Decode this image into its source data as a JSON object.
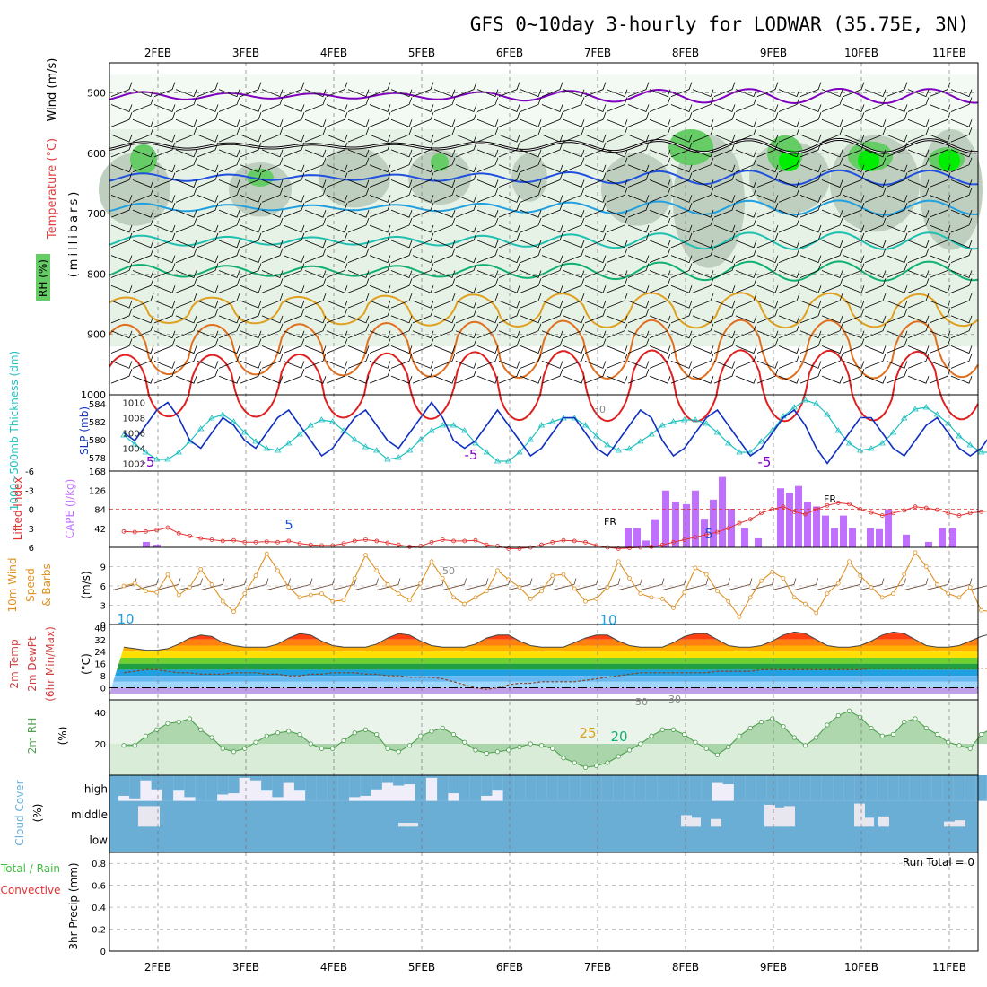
{
  "title": "GFS 0~10day 3-hourly for LODWAR (35.75E, 3N)",
  "dates": [
    "2FEB",
    "3FEB",
    "4FEB",
    "5FEB",
    "6FEB",
    "7FEB",
    "8FEB",
    "9FEB",
    "10FEB",
    "11FEB"
  ],
  "colors": {
    "rh_light": "#e6f2e6",
    "rh_mid": "#bfcfbf",
    "rh_high": "#66cc66",
    "rh_max": "#00ee00",
    "purple": "#8000c0",
    "blue": "#2050e0",
    "sky": "#20a0e0",
    "teal": "#20c0b0",
    "green": "#10b070",
    "orange": "#e0a020",
    "dorange": "#e07020",
    "red": "#e02020",
    "thickness": "#20c0c0",
    "slp": "#1030c0",
    "cape": "#c070ff",
    "li": "#e03030",
    "wind": "#e09020",
    "rh2m": "#50a050",
    "cloud": "#6aaed6",
    "cloud_bg": "#f0eef8"
  },
  "panels": {
    "upper": {
      "ylabel_wind": "Wind (m/s)",
      "ylabel_temp": "Temperature (°C)",
      "ylabel_rh": "RH (%)",
      "ylabel_units": "(millibars)",
      "ticks": [
        "500",
        "600",
        "700",
        "800",
        "900",
        "1000"
      ],
      "contour_labels": [
        "-5",
        "-5",
        "-5",
        "5",
        "5",
        "10",
        "10",
        "25",
        "20",
        "FR",
        "FR",
        "30",
        "50",
        "50",
        "30"
      ]
    },
    "thick": {
      "ylabel_thick": "1000~500mb Thickness (dm)",
      "ylabel_slp": "SLP (mb)",
      "left_ticks": [
        "584",
        "582",
        "580",
        "578"
      ],
      "right_ticks": [
        "1010",
        "1008",
        "1006",
        "1004",
        "1002"
      ]
    },
    "cape": {
      "ylabel_li": "Lifted Index",
      "ylabel_cape": "CAPE (J/kg)",
      "li_ticks": [
        "-6",
        "-3",
        "0",
        "3",
        "6"
      ],
      "cape_ticks": [
        "168",
        "126",
        "84",
        "42"
      ]
    },
    "wind": {
      "ylabel1": "10m Wind",
      "ylabel2": "Speed",
      "ylabel3": "& Barbs",
      "ylabel_units": "(m/s)",
      "ticks": [
        "9",
        "6",
        "3",
        "0"
      ]
    },
    "temp": {
      "ylabel1": "2m Temp",
      "ylabel2": "2m DewPt",
      "ylabel3": "(6hr Min/Max)",
      "ylabel_units": "(°C)",
      "ticks": [
        "40",
        "32",
        "24",
        "16",
        "8",
        "0"
      ]
    },
    "rh": {
      "ylabel": "2m RH",
      "ylabel_units": "(%)",
      "ticks": [
        "40",
        "20"
      ]
    },
    "cloud": {
      "ylabel": "Cloud Cover",
      "ylabel_units": "(%)",
      "levels": [
        "high",
        "middle",
        "low"
      ]
    },
    "precip": {
      "ylabel1": "Total / Rain",
      "ylabel2": "Convective",
      "ylabel3": "3hr Precip (mm)",
      "ticks": [
        "0.8",
        "0.6",
        "0.4",
        "0.2",
        "0"
      ],
      "run_total": "Run Total = 0"
    }
  },
  "chart_data": {
    "type": "line",
    "title": "GFS 0~10day 3-hourly for LODWAR (35.75E, 3N)",
    "x_axis": "3-hourly forecast steps from 1FEB 15Z to 11FEB 06Z (date labels at 00Z)",
    "slp_mb": [
      1006,
      1005,
      1007,
      1009,
      1010,
      1008,
      1005,
      1004,
      1006,
      1008,
      1007,
      1005,
      1004,
      1006,
      1008,
      1009,
      1007,
      1005,
      1003,
      1004,
      1006,
      1008,
      1009,
      1007,
      1005,
      1004,
      1006,
      1008,
      1010,
      1008,
      1005,
      1004,
      1005,
      1007,
      1009,
      1007,
      1005,
      1003,
      1004,
      1006,
      1008,
      1008,
      1006,
      1004,
      1003,
      1005,
      1007,
      1009,
      1008,
      1005,
      1003,
      1004,
      1006,
      1008,
      1009,
      1007,
      1005,
      1003,
      1004,
      1006,
      1008,
      1009,
      1007,
      1004,
      1002,
      1004,
      1006,
      1008,
      1008,
      1006,
      1004,
      1003,
      1005,
      1007,
      1008,
      1006,
      1004,
      1003,
      1004,
      1006,
      1008
    ],
    "thickness_dm": [
      580.5,
      579.5,
      578.6,
      577.8,
      577.8,
      578.6,
      579.8,
      581.2,
      582.4,
      582.8,
      582.0,
      580.8,
      579.8,
      579.0,
      578.8,
      579.6,
      580.6,
      581.6,
      582.2,
      582.0,
      581.0,
      580.0,
      579.2,
      578.8,
      577.8,
      578.0,
      578.8,
      580.0,
      581.0,
      581.6,
      581.6,
      581.0,
      579.6,
      578.6,
      577.6,
      577.6,
      578.6,
      580.0,
      581.6,
      582.0,
      582.4,
      582.4,
      581.6,
      580.4,
      579.4,
      578.8,
      579.0,
      579.8,
      580.6,
      581.6,
      582.0,
      582.2,
      582.2,
      581.8,
      580.8,
      579.6,
      578.6,
      578.6,
      579.8,
      581.0,
      582.6,
      583.6,
      584.4,
      584.0,
      582.8,
      581.0,
      579.6,
      578.8,
      579.0,
      579.6,
      580.8,
      582.4,
      583.4,
      583.6,
      582.8,
      581.8,
      580.4,
      579.4,
      578.6,
      578.6,
      579.2
    ],
    "cape_jkg": [
      0,
      0,
      6,
      0,
      3,
      0,
      0,
      0,
      0,
      0,
      0,
      0,
      0,
      0,
      0,
      0,
      0,
      0,
      0,
      0,
      0,
      0,
      0,
      0,
      0,
      0,
      0,
      0,
      0,
      0,
      0,
      0,
      0,
      0,
      0,
      0,
      0,
      0,
      0,
      0,
      0,
      0,
      0,
      0,
      0,
      0,
      0,
      0,
      0,
      0,
      0,
      0,
      0,
      0,
      0,
      0,
      0,
      0,
      0,
      0,
      0,
      0,
      0,
      0,
      0,
      0,
      0,
      0,
      0,
      0,
      0,
      0,
      0,
      0,
      0,
      0,
      0,
      0,
      0,
      0,
      0
    ],
    "lifted_index": [
      3.5,
      3.6,
      3.5,
      3.3,
      2.9,
      3.8,
      4.2,
      4.6,
      4.8,
      5.0,
      4.9,
      5.2,
      5.2,
      5.1,
      5.2,
      5.0,
      5.4,
      5.6,
      5.7,
      5.7,
      5.4,
      5.0,
      4.8,
      5.0,
      5.3,
      5.6,
      5.9,
      5.8,
      5.2,
      4.8,
      5.0,
      5.0,
      4.9,
      5.6,
      5.8,
      6.2,
      6.2,
      6.0,
      5.6,
      5.2,
      4.9,
      5.0,
      5.2,
      5.7,
      6.0,
      6.2,
      6.1,
      6.0,
      5.9,
      5.6,
      5.2,
      4.8,
      4.4,
      4.0,
      3.6,
      3.0,
      2.2,
      1.6,
      0.6,
      0.0,
      -0.4,
      0.4,
      0.8,
      0.0,
      -0.6,
      -1.0,
      -0.8,
      0.0,
      0.5,
      1.0,
      0.6,
      0.2,
      -0.4,
      -0.2,
      0.1,
      0.6,
      1.0,
      0.6,
      0.4,
      0.2,
      0.6
    ],
    "wind10m_ms": [
      6.0,
      6.4,
      5.2,
      5.0,
      7.8,
      4.6,
      5.8,
      8.6,
      6.2,
      3.6,
      2.0,
      4.8,
      7.6,
      11.0,
      8.4,
      5.8,
      4.2,
      4.6,
      4.8,
      3.6,
      3.8,
      7.2,
      10.8,
      8.4,
      6.2,
      4.8,
      3.8,
      6.4,
      9.8,
      7.2,
      4.2,
      3.2,
      4.2,
      5.2,
      8.4,
      7.0,
      5.8,
      4.0,
      5.2,
      7.6,
      7.8,
      5.6,
      3.6,
      4.0,
      5.8,
      9.8,
      7.2,
      4.8,
      4.2,
      4.0,
      2.6,
      5.0,
      8.8,
      7.8,
      5.2,
      3.6,
      1.2,
      4.2,
      6.8,
      8.2,
      7.2,
      4.2,
      3.2,
      1.8,
      4.8,
      6.4,
      9.8,
      7.6,
      5.8,
      4.2,
      4.8,
      7.8,
      11.2,
      9.0,
      6.2,
      4.8,
      4.2,
      5.8,
      2.2,
      2.0,
      5.6
    ],
    "temp2m_c": [
      27,
      26,
      25,
      25,
      26,
      29,
      33,
      35,
      34,
      30,
      28,
      27,
      27,
      27,
      29,
      33,
      36,
      35,
      31,
      28,
      27,
      27,
      27,
      29,
      33,
      36,
      35,
      31,
      28,
      27,
      27,
      27,
      29,
      33,
      35,
      35,
      31,
      28,
      27,
      27,
      27,
      30,
      33,
      35,
      35,
      31,
      28,
      27,
      27,
      27,
      30,
      34,
      36,
      36,
      32,
      28,
      27,
      27,
      28,
      31,
      35,
      37,
      36,
      32,
      28,
      27,
      27,
      28,
      31,
      35,
      37,
      36,
      32,
      28,
      27,
      27,
      28,
      31,
      34,
      36,
      35
    ],
    "dewpt2m_c": [
      10,
      11,
      12,
      12,
      11,
      10,
      10,
      9,
      9,
      9,
      10,
      10,
      10,
      9,
      9,
      8,
      8,
      9,
      9,
      10,
      10,
      10,
      9,
      9,
      8,
      8,
      7,
      7,
      7,
      6,
      4,
      2,
      0,
      -1,
      0,
      2,
      3,
      3,
      4,
      4,
      4,
      4,
      5,
      6,
      7,
      8,
      9,
      10,
      10,
      10,
      10,
      10,
      10,
      10,
      11,
      11,
      11,
      11,
      12,
      12,
      12,
      12,
      12,
      12,
      12,
      12,
      12,
      12,
      13,
      13,
      13,
      13,
      13,
      13,
      13,
      13,
      13,
      13,
      13,
      13,
      13
    ],
    "rh2m_pct": [
      19,
      19,
      25,
      29,
      33,
      34,
      36,
      29,
      24,
      17,
      15,
      17,
      21,
      25,
      27,
      28,
      26,
      20,
      17,
      17,
      22,
      27,
      29,
      26,
      17,
      15,
      19,
      25,
      28,
      30,
      26,
      21,
      16,
      14,
      15,
      16,
      18,
      20,
      19,
      17,
      11,
      8,
      5,
      6,
      8,
      12,
      16,
      20,
      25,
      29,
      29,
      26,
      21,
      17,
      13,
      18,
      25,
      30,
      34,
      36,
      31,
      24,
      19,
      24,
      32,
      38,
      41,
      37,
      30,
      25,
      26,
      34,
      36,
      30,
      26,
      21,
      19,
      17,
      26,
      30,
      36
    ],
    "precip_mm": [
      0,
      0,
      0,
      0,
      0,
      0,
      0,
      0,
      0,
      0,
      0,
      0,
      0,
      0,
      0,
      0,
      0,
      0,
      0,
      0,
      0,
      0,
      0,
      0,
      0,
      0,
      0,
      0,
      0,
      0,
      0,
      0,
      0,
      0,
      0,
      0,
      0,
      0,
      0,
      0,
      0,
      0,
      0,
      0,
      0,
      0,
      0,
      0,
      0,
      0,
      0,
      0,
      0,
      0,
      0,
      0,
      0,
      0,
      0,
      0,
      0,
      0,
      0,
      0,
      0,
      0,
      0,
      0,
      0,
      0,
      0,
      0,
      0,
      0,
      0,
      0,
      0,
      0,
      0,
      0,
      0
    ],
    "cloud_high_pct": [
      80,
      90,
      20,
      55,
      100,
      60,
      85,
      100,
      100,
      75,
      70,
      10,
      20,
      60,
      85,
      30,
      60,
      100,
      100,
      100,
      100,
      85,
      80,
      55,
      30,
      40,
      35,
      100,
      10,
      100,
      70,
      100,
      100,
      80,
      60,
      100,
      100,
      100,
      100,
      100,
      100,
      100,
      100,
      100,
      100,
      100,
      100,
      100,
      100,
      100,
      100,
      100,
      100,
      100,
      30,
      35,
      100,
      100,
      100,
      100,
      100,
      100,
      100,
      100,
      100,
      100,
      100,
      100,
      100,
      100,
      100,
      100,
      100,
      100,
      100,
      100,
      100,
      100,
      100,
      100,
      100
    ],
    "cloud_mid_pct": [
      20,
      20,
      20,
      20,
      0,
      20,
      20,
      0,
      0,
      0,
      0,
      0,
      0,
      0,
      0,
      0,
      0,
      0,
      0,
      0,
      0,
      0,
      0,
      0,
      0,
      0,
      0,
      0,
      0,
      0,
      0,
      0,
      0,
      0,
      0,
      0,
      0,
      0,
      0,
      0,
      0,
      0,
      0,
      0,
      0,
      0,
      0,
      0,
      0,
      0,
      0,
      0,
      0,
      0,
      0,
      0,
      0,
      0,
      0,
      0,
      0,
      0,
      0,
      0,
      0,
      0,
      0,
      0,
      0,
      0,
      0,
      0,
      0,
      0,
      0,
      0,
      0,
      0,
      0,
      0,
      0
    ]
  }
}
